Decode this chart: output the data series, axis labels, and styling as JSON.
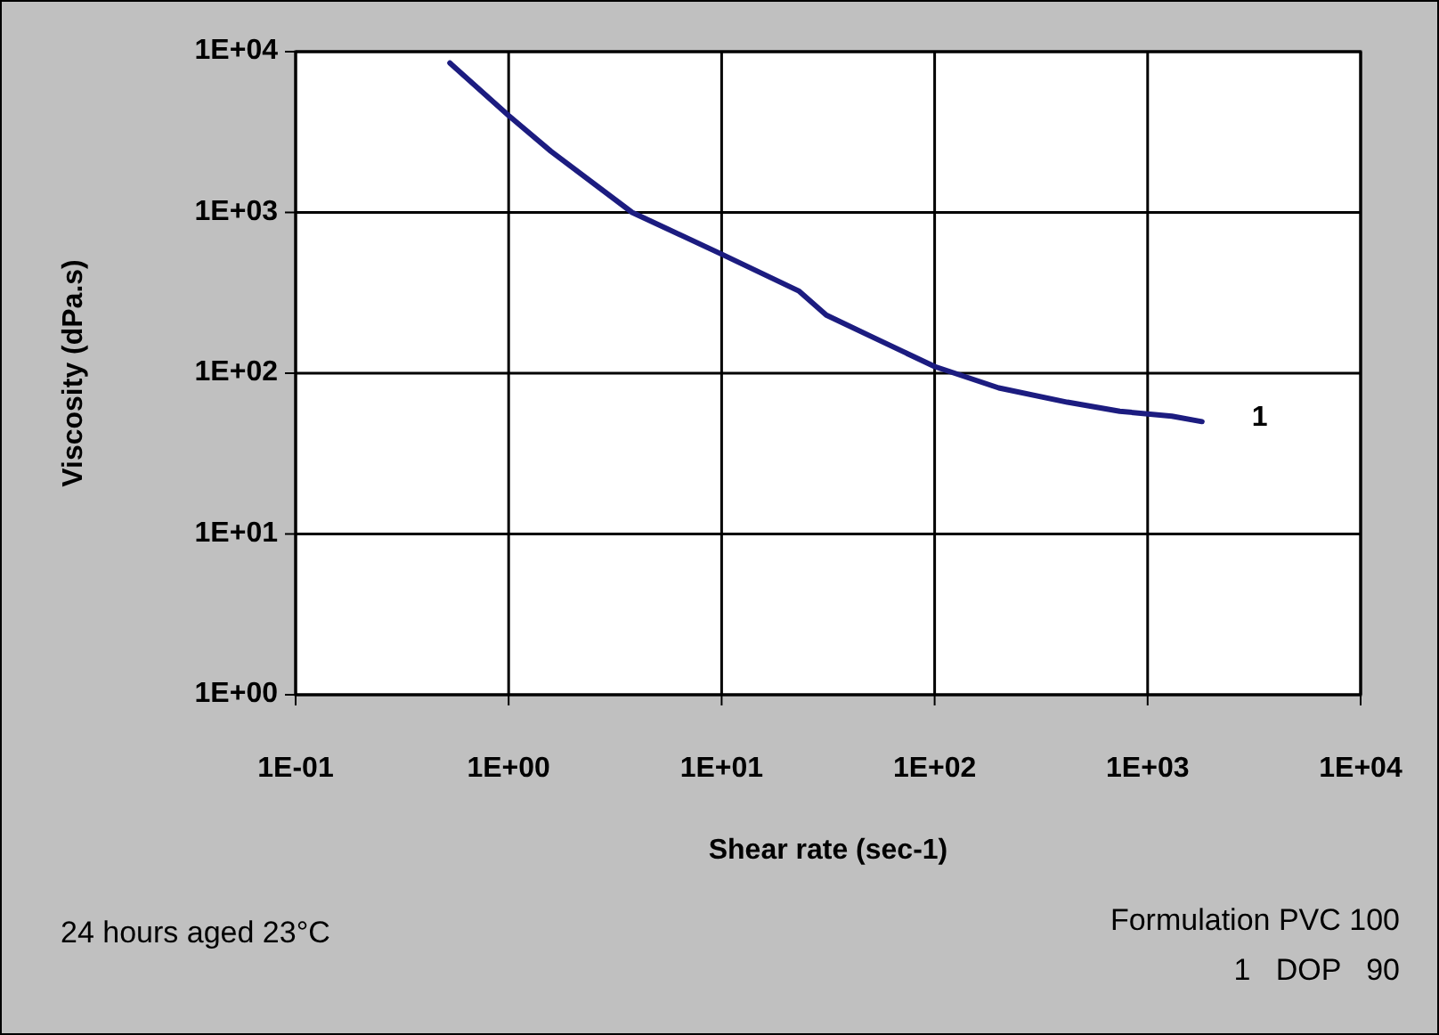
{
  "chart_data": {
    "type": "line",
    "xlabel": "Shear rate (sec-1)",
    "ylabel": "Viscosity (dPa.s)",
    "log": "xy",
    "xlim": [
      0.1,
      10000
    ],
    "ylim": [
      1,
      10000
    ],
    "xticks": [
      {
        "value": 0.1,
        "label": "1E-01"
      },
      {
        "value": 1,
        "label": "1E+00"
      },
      {
        "value": 10,
        "label": "1E+01"
      },
      {
        "value": 100,
        "label": "1E+02"
      },
      {
        "value": 1000,
        "label": "1E+03"
      },
      {
        "value": 10000,
        "label": "1E+04"
      }
    ],
    "yticks": [
      {
        "value": 1,
        "label": "1E+00"
      },
      {
        "value": 10,
        "label": "1E+01"
      },
      {
        "value": 100,
        "label": "1E+02"
      },
      {
        "value": 1000,
        "label": "1E+03"
      },
      {
        "value": 10000,
        "label": "1E+04"
      }
    ],
    "grid": true,
    "legend": false,
    "marker": "none",
    "line_style": "solid",
    "series": [
      {
        "name": "1",
        "color": "#1c1c80",
        "x": [
          0.53,
          1,
          1.58,
          3.8,
          10,
          23,
          31,
          50,
          100,
          200,
          420,
          740,
          1300,
          1800
        ],
        "values": [
          8500,
          4000,
          2400,
          1000,
          550,
          325,
          230,
          170,
          110,
          81,
          66,
          58,
          54,
          50
        ]
      }
    ],
    "annotations": [
      "24 hours aged 23°C",
      "Formulation PVC 100",
      "1   DOP   90"
    ]
  }
}
